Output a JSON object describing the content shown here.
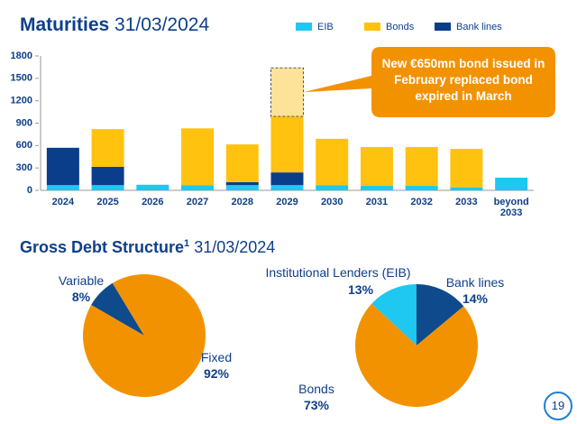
{
  "chart_data": [
    {
      "type": "bar",
      "stacked": true,
      "title": "Maturities",
      "date": "31/03/2024",
      "categories": [
        "2024",
        "2025",
        "2026",
        "2027",
        "2028",
        "2029",
        "2030",
        "2031",
        "2032",
        "2033",
        "beyond 2033"
      ],
      "series": [
        {
          "name": "EIB",
          "color": "#1ec8f0",
          "values": [
            70,
            70,
            75,
            70,
            70,
            70,
            70,
            60,
            60,
            40,
            170
          ]
        },
        {
          "name": "Bonds",
          "color": "#ffc20e",
          "values": [
            0,
            505,
            0,
            760,
            505,
            750,
            620,
            520,
            520,
            515,
            0
          ]
        },
        {
          "name": "Bank lines",
          "color": "#0a3d8a",
          "values": [
            500,
            245,
            0,
            0,
            40,
            170,
            0,
            0,
            0,
            0,
            0
          ]
        }
      ],
      "ylim": [
        0,
        1800
      ],
      "yticks": [
        0,
        300,
        600,
        900,
        1200,
        1500,
        1800
      ],
      "annotation": {
        "text": "New €650mn bond issued in February replaced bond expired in March",
        "value": 650,
        "category": "2029"
      }
    },
    {
      "type": "pie",
      "categories": [
        "Variable",
        "Fixed"
      ],
      "values": [
        8,
        92
      ],
      "value_labels": [
        "8%",
        "92%"
      ],
      "colors": [
        "#0e4a8c",
        "#f39200"
      ]
    },
    {
      "type": "pie",
      "categories": [
        "Institutional Lenders (EIB)",
        "Bank lines",
        "Bonds"
      ],
      "values": [
        13,
        14,
        73
      ],
      "value_labels": [
        "13%",
        "14%",
        "73%"
      ],
      "colors": [
        "#1ec8f0",
        "#0e4a8c",
        "#f39200"
      ]
    }
  ],
  "heading": {
    "text": "Gross Debt Structure",
    "footnote_mark": "1",
    "date": "31/03/2024"
  },
  "page_number": 19
}
